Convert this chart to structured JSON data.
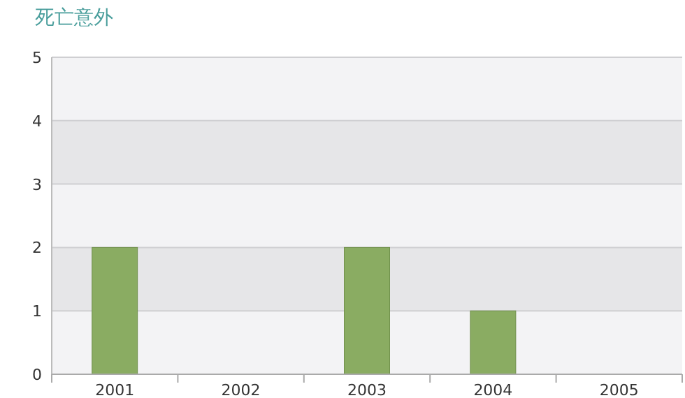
{
  "chart_data": {
    "type": "bar",
    "title": "死亡意外",
    "categories": [
      "2001",
      "2002",
      "2003",
      "2004",
      "2005"
    ],
    "values": [
      2,
      0,
      2,
      1,
      0
    ],
    "color": "#8aac62",
    "ylim": [
      0,
      5
    ],
    "yticks": [
      0,
      1,
      2,
      3,
      4,
      5
    ],
    "grid": "y"
  }
}
